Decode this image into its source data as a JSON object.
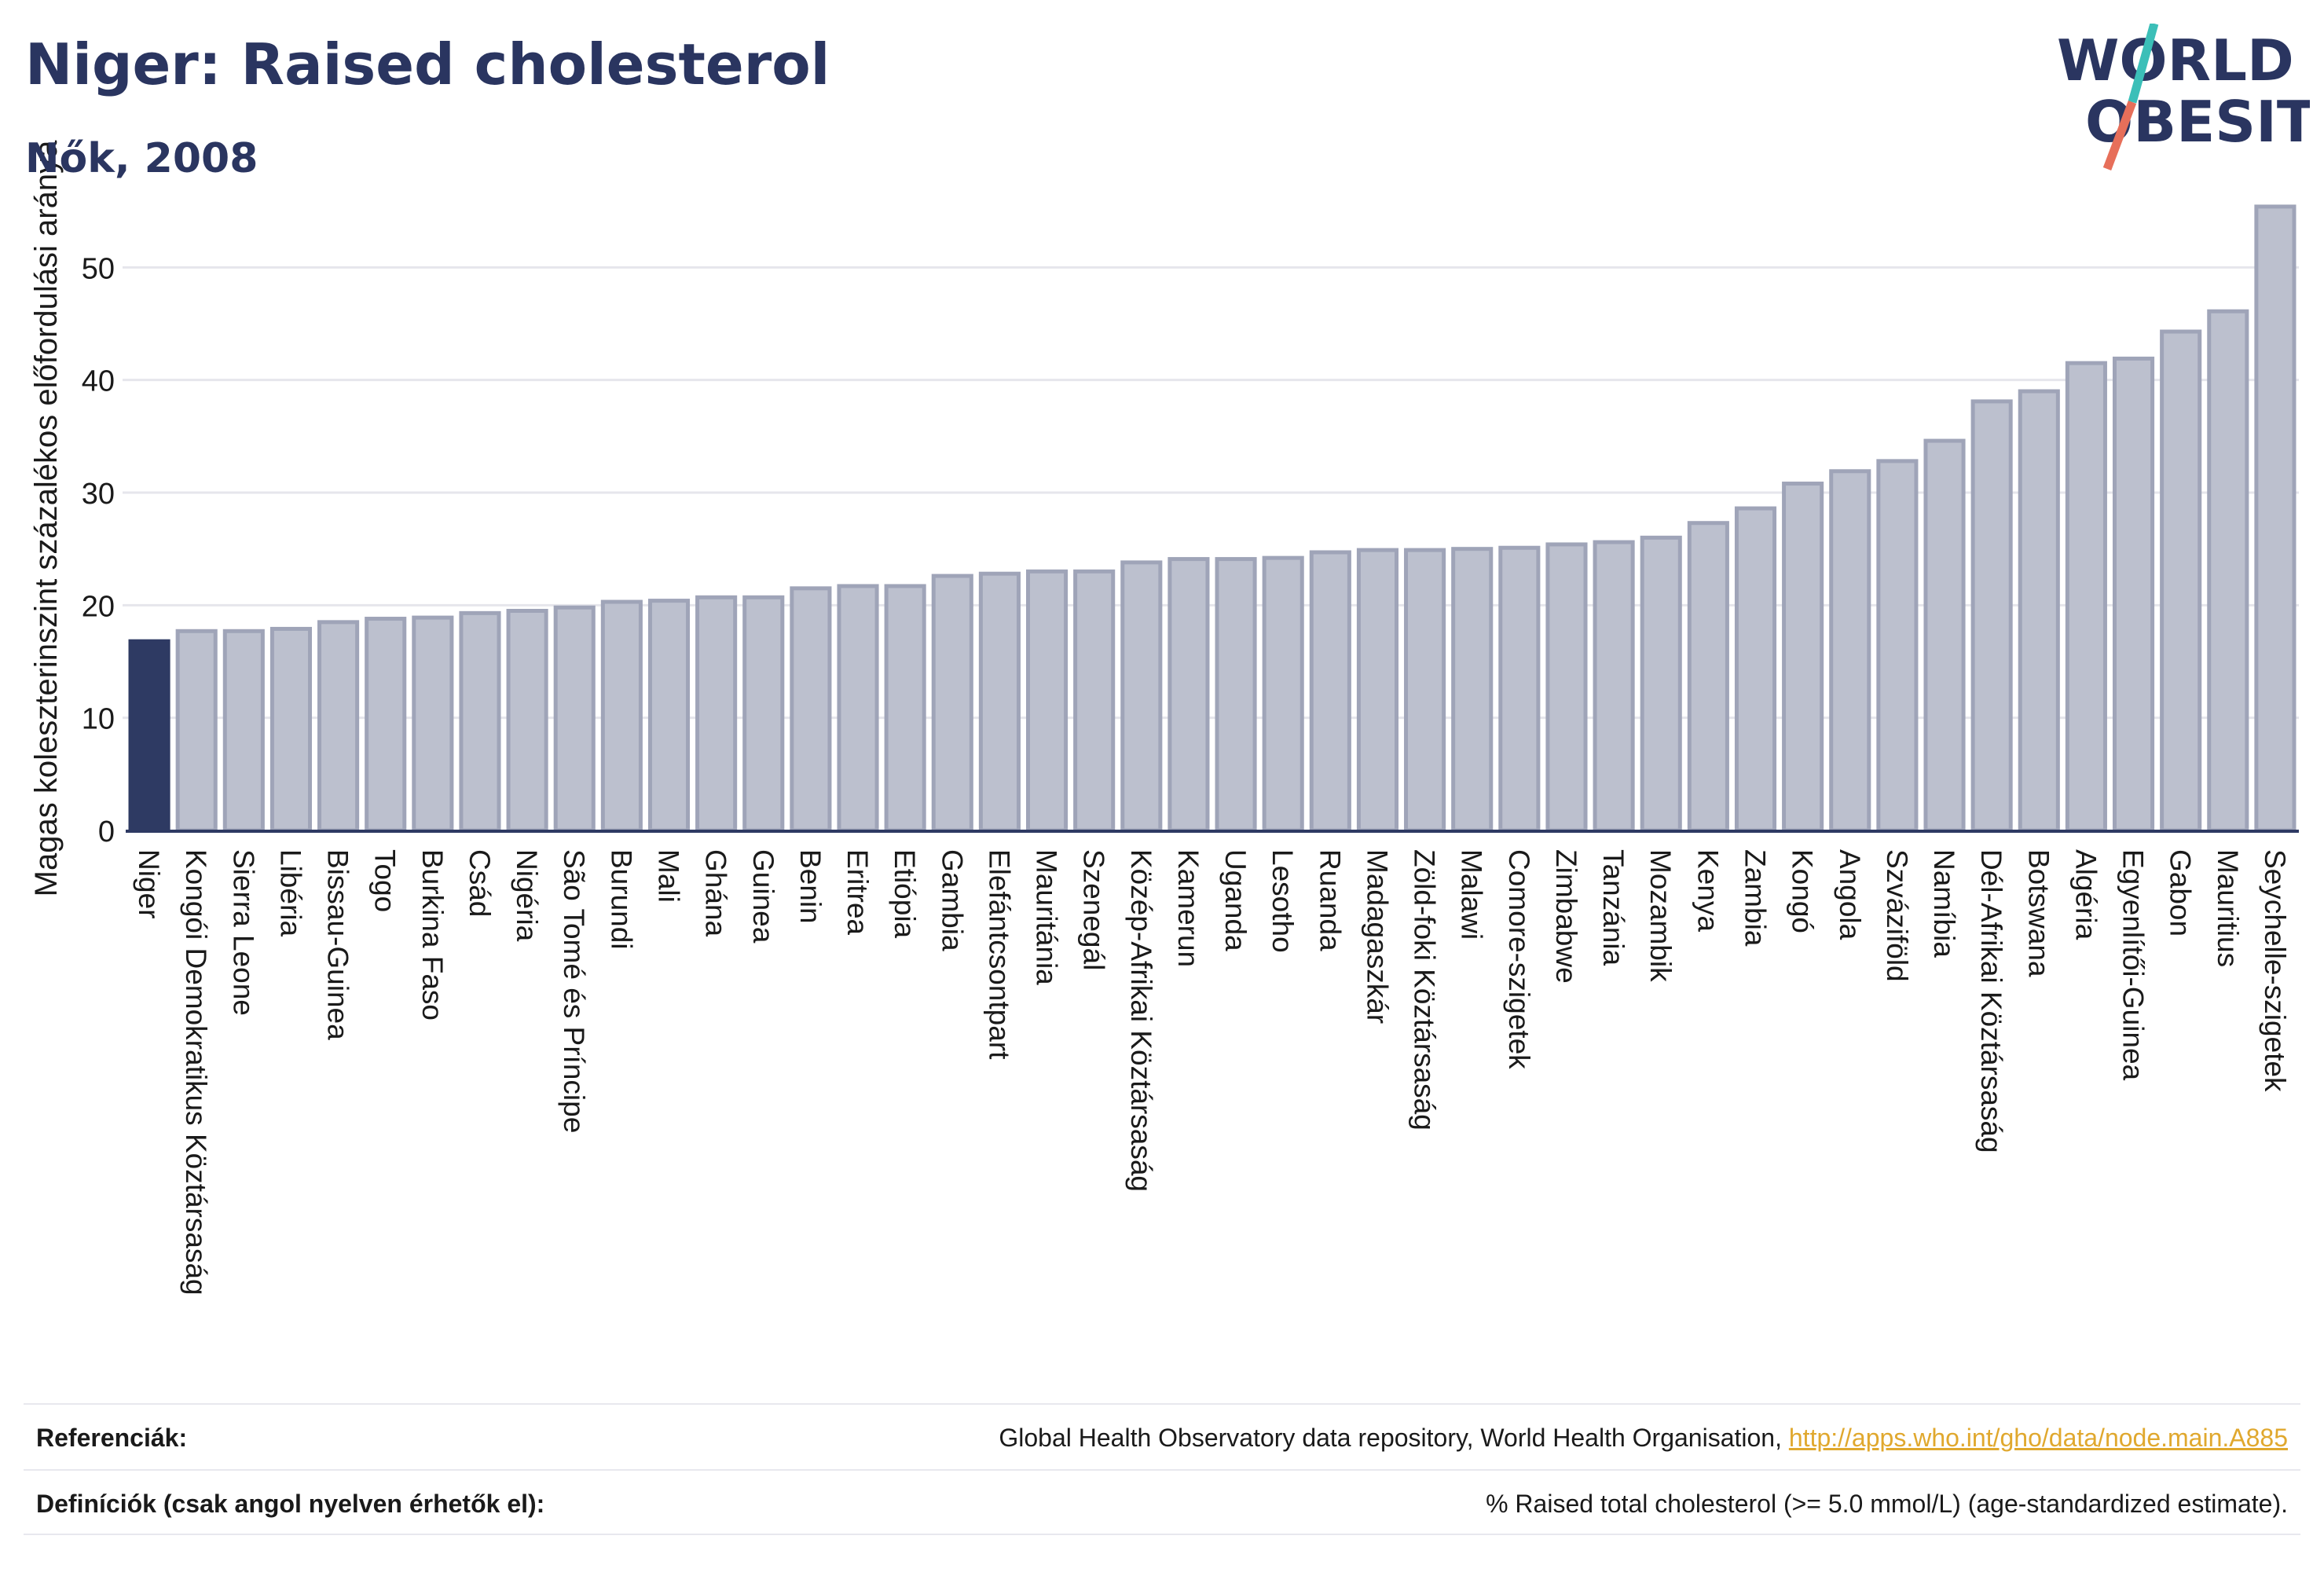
{
  "header": {
    "title": "Niger: Raised cholesterol",
    "subtitle": "Nők, 2008"
  },
  "logo": {
    "line1": "WORLD",
    "line2": "OBESITY",
    "colors": {
      "text": "#2a3560",
      "slash_teal": "#3bbfb8",
      "slash_red": "#e76f5a"
    }
  },
  "colors": {
    "highlight_bar": "#2e3a63",
    "other_bar_fill": "#bcc0ce",
    "other_bar_stroke": "#9fa4b8",
    "grid": "#e6e6ec",
    "axis": "#2e3a63"
  },
  "chart_data": {
    "type": "bar",
    "title": "Niger: Raised cholesterol",
    "subtitle": "Nők, 2008",
    "ylabel": "Magas koleszterinszint százalékos előfordulási aránya",
    "xlabel": "",
    "ylim": [
      0,
      57
    ],
    "yticks": [
      0,
      10,
      20,
      30,
      40,
      50
    ],
    "grid": true,
    "highlight": "Niger",
    "categories": [
      "Niger",
      "Kongói Demokratikus Köztársaság",
      "Sierra Leone",
      "Libéria",
      "Bissau-Guinea",
      "Togo",
      "Burkina Faso",
      "Csád",
      "Nigéria",
      "São Tomé és Príncipe",
      "Burundi",
      "Mali",
      "Ghána",
      "Guinea",
      "Benin",
      "Eritrea",
      "Etiópia",
      "Gambia",
      "Elefántcsontpart",
      "Mauritánia",
      "Szenegál",
      "Közép-Afrikai Köztársaság",
      "Kamerun",
      "Uganda",
      "Lesotho",
      "Ruanda",
      "Madagaszkár",
      "Zöld-foki Köztársaság",
      "Malawi",
      "Comore-szigetek",
      "Zimbabwe",
      "Tanzánia",
      "Mozambik",
      "Kenya",
      "Zambia",
      "Kongó",
      "Angola",
      "Szváziföld",
      "Namíbia",
      "Dél-Afrikai Köztársaság",
      "Botswana",
      "Algéria",
      "Egyenlítői-Guinea",
      "Gabon",
      "Mauritius",
      "Seychelle-szigetek"
    ],
    "values": [
      16.8,
      17.7,
      17.7,
      17.9,
      18.5,
      18.8,
      18.9,
      19.3,
      19.5,
      19.8,
      20.3,
      20.4,
      20.7,
      20.7,
      21.5,
      21.7,
      21.7,
      22.6,
      22.8,
      23.0,
      23.0,
      23.8,
      24.1,
      24.1,
      24.2,
      24.7,
      24.9,
      24.9,
      25.0,
      25.1,
      25.4,
      25.6,
      26.0,
      27.3,
      28.6,
      30.8,
      31.9,
      32.8,
      34.6,
      38.1,
      39.0,
      41.5,
      41.9,
      44.3,
      46.1,
      55.4
    ]
  },
  "footer": {
    "references_label": "Referenciák:",
    "references_text": "Global Health Observatory data repository, World Health Organisation,",
    "references_link": "http://apps.who.int/gho/data/node.main.A885",
    "definitions_label": "Definíciók (csak angol nyelven érhetők el):",
    "definitions_text": "% Raised total cholesterol (>= 5.0 mmol/L) (age-standardized estimate)."
  }
}
